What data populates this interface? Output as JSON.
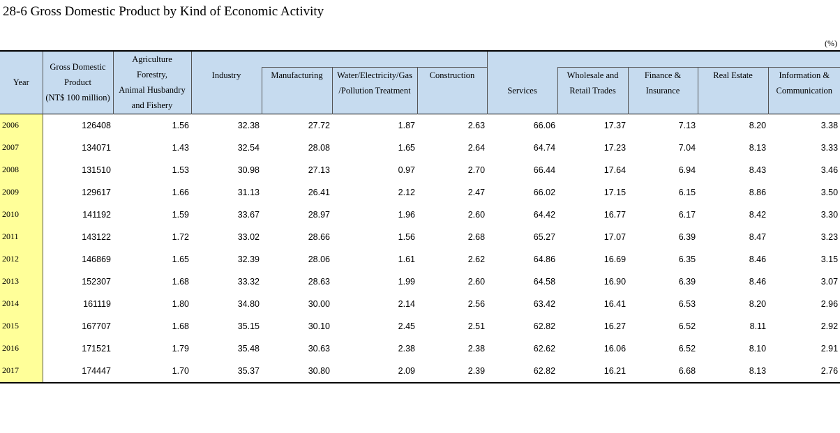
{
  "title": "28-6  Gross Domestic Product by Kind of Economic Activity",
  "unit": "(%)",
  "headers": {
    "year": "Year",
    "gdp": [
      "Gross Domestic",
      "Product",
      "(NT$ 100 million)"
    ],
    "agriculture": [
      "Agriculture",
      "Forestry,",
      "Animal Husbandry",
      "and Fishery"
    ],
    "industry": "Industry",
    "manufacturing": "Manufacturing",
    "water": [
      "Water/Electricity/Gas",
      "/Pollution Treatment"
    ],
    "construction": "Construction",
    "services": "Services",
    "wholesale": [
      "Wholesale and",
      "Retail Trades"
    ],
    "finance": [
      "Finance &",
      "Insurance"
    ],
    "real_estate": "Real Estate",
    "information": [
      "Information &",
      "Communication"
    ]
  },
  "rows": [
    [
      "2006",
      "126408",
      "1.56",
      "32.38",
      "27.72",
      "1.87",
      "2.63",
      "66.06",
      "17.37",
      "7.13",
      "8.20",
      "3.38"
    ],
    [
      "2007",
      "134071",
      "1.43",
      "32.54",
      "28.08",
      "1.65",
      "2.64",
      "64.74",
      "17.23",
      "7.04",
      "8.13",
      "3.33"
    ],
    [
      "2008",
      "131510",
      "1.53",
      "30.98",
      "27.13",
      "0.97",
      "2.70",
      "66.44",
      "17.64",
      "6.94",
      "8.43",
      "3.46"
    ],
    [
      "2009",
      "129617",
      "1.66",
      "31.13",
      "26.41",
      "2.12",
      "2.47",
      "66.02",
      "17.15",
      "6.15",
      "8.86",
      "3.50"
    ],
    [
      "2010",
      "141192",
      "1.59",
      "33.67",
      "28.97",
      "1.96",
      "2.60",
      "64.42",
      "16.77",
      "6.17",
      "8.42",
      "3.30"
    ],
    [
      "2011",
      "143122",
      "1.72",
      "33.02",
      "28.66",
      "1.56",
      "2.68",
      "65.27",
      "17.07",
      "6.39",
      "8.47",
      "3.23"
    ],
    [
      "2012",
      "146869",
      "1.65",
      "32.39",
      "28.06",
      "1.61",
      "2.62",
      "64.86",
      "16.69",
      "6.35",
      "8.46",
      "3.15"
    ],
    [
      "2013",
      "152307",
      "1.68",
      "33.32",
      "28.63",
      "1.99",
      "2.60",
      "64.58",
      "16.90",
      "6.39",
      "8.46",
      "3.07"
    ],
    [
      "2014",
      "161119",
      "1.80",
      "34.80",
      "30.00",
      "2.14",
      "2.56",
      "63.42",
      "16.41",
      "6.53",
      "8.20",
      "2.96"
    ],
    [
      "2015",
      "167707",
      "1.68",
      "35.15",
      "30.10",
      "2.45",
      "2.51",
      "62.82",
      "16.27",
      "6.52",
      "8.11",
      "2.92"
    ],
    [
      "2016",
      "171521",
      "1.79",
      "35.48",
      "30.63",
      "2.38",
      "2.38",
      "62.62",
      "16.06",
      "6.52",
      "8.10",
      "2.91"
    ],
    [
      "2017",
      "174447",
      "1.70",
      "35.37",
      "30.80",
      "2.09",
      "2.39",
      "62.82",
      "16.21",
      "6.68",
      "8.13",
      "2.76"
    ]
  ],
  "colors": {
    "header_bg": "#c6dbef",
    "year_bg": "#ffff99"
  }
}
